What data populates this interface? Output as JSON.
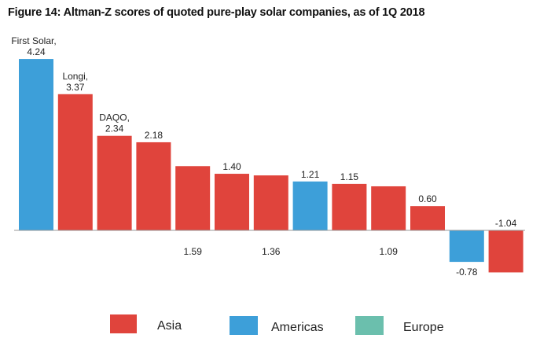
{
  "chart_data": {
    "type": "bar",
    "title": "Figure 14: Altman-Z scores of quoted pure-play solar companies, as of 1Q 2018",
    "xlabel": "",
    "ylabel": "",
    "ylim": [
      -1.5,
      4.5
    ],
    "grid": false,
    "legend_position": "bottom",
    "legend": [
      {
        "name": "Asia",
        "color": "#e0443c"
      },
      {
        "name": "Americas",
        "color": "#3d9fd9"
      },
      {
        "name": "Europe",
        "color": "#6bbfad"
      }
    ],
    "bars": [
      {
        "name": "First Solar,",
        "value": 4.24,
        "label": "4.24",
        "region": "Americas",
        "label_side": "above"
      },
      {
        "name": "Longi,",
        "value": 3.37,
        "label": "3.37",
        "region": "Asia",
        "label_side": "above"
      },
      {
        "name": "DAQO,",
        "value": 2.34,
        "label": "2.34",
        "region": "Asia",
        "label_side": "above"
      },
      {
        "name": "",
        "value": 2.18,
        "label": "2.18",
        "region": "Asia",
        "label_side": "above"
      },
      {
        "name": "",
        "value": 1.59,
        "label": "1.59",
        "region": "Asia",
        "label_side": "below"
      },
      {
        "name": "",
        "value": 1.4,
        "label": "1.40",
        "region": "Asia",
        "label_side": "above"
      },
      {
        "name": "",
        "value": 1.36,
        "label": "1.36",
        "region": "Asia",
        "label_side": "below"
      },
      {
        "name": "",
        "value": 1.21,
        "label": "1.21",
        "region": "Americas",
        "label_side": "above"
      },
      {
        "name": "",
        "value": 1.15,
        "label": "1.15",
        "region": "Asia",
        "label_side": "above"
      },
      {
        "name": "",
        "value": 1.09,
        "label": "1.09",
        "region": "Asia",
        "label_side": "below"
      },
      {
        "name": "",
        "value": 0.6,
        "label": "0.60",
        "region": "Asia",
        "label_side": "above"
      },
      {
        "name": "",
        "value": -0.78,
        "label": "-0.78",
        "region": "Americas",
        "label_side": "below"
      },
      {
        "name": "",
        "value": -1.04,
        "label": "-1.04",
        "region": "Asia",
        "label_side": "above"
      }
    ]
  }
}
